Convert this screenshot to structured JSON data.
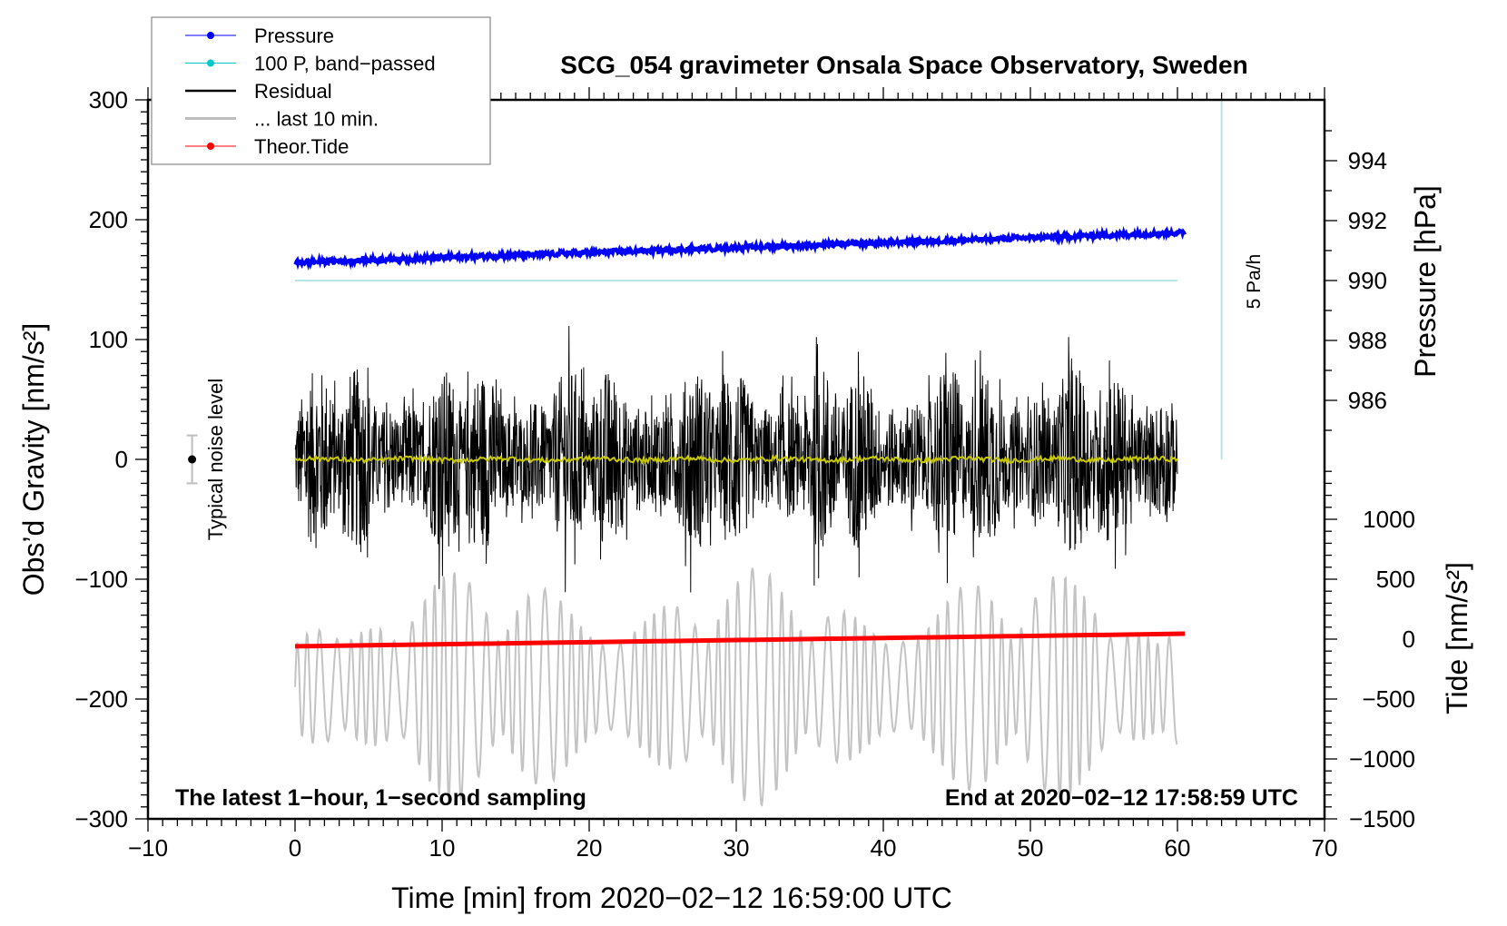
{
  "chart_data": {
    "type": "line",
    "title": "SCG_054 gravimeter Onsala Space Observatory, Sweden",
    "xlabel": "Time [min] from 2020−02−12 16:59:00 UTC",
    "ylabel_left": "Obs’d Gravity [nm/s²]",
    "ylabel_right_pressure": "Pressure [hPa]",
    "ylabel_right_tide": "Tide [nm/s²]",
    "xlim": [
      -10,
      70
    ],
    "ylim": [
      -300,
      300
    ],
    "x_ticks": [
      "−10",
      "0",
      "10",
      "20",
      "30",
      "40",
      "50",
      "60",
      "70"
    ],
    "y_ticks": [
      "300",
      "200",
      "100",
      "0",
      "−100",
      "−200",
      "−300"
    ],
    "pressure_ticks": [
      "994",
      "992",
      "990",
      "988",
      "986"
    ],
    "tide_ticks": [
      "1000",
      "500",
      "0",
      "−500",
      "−1000",
      "−1500"
    ],
    "annotation_left": "The latest 1−hour, 1−second sampling",
    "annotation_right": "End at 2020−02−12 17:58:59 UTC",
    "noise_label": "Typical noise level",
    "noise_level": {
      "x": -7,
      "y": 0,
      "err": 20
    },
    "rate_label": "5 Pa/h",
    "legend": {
      "placement": "top-left",
      "entries": [
        {
          "label": "Pressure",
          "color": "#0000ff",
          "marker": true
        },
        {
          "label": "100 P, band−passed",
          "color": "#00c8c8",
          "marker": true
        },
        {
          "label": "Residual",
          "color": "#000000",
          "marker": false
        },
        {
          "label": "... last 10 min.",
          "color": "#bebebe",
          "marker": false
        },
        {
          "label": "Theor.Tide",
          "color": "#ff0000",
          "marker": true
        }
      ]
    },
    "series": [
      {
        "name": "Pressure",
        "axis": "pressure_hPa",
        "x_range": [
          0,
          60.5
        ],
        "start": 990.6,
        "end": 991.6,
        "noise": 0.08
      },
      {
        "name": "100 P, band-passed",
        "axis": "pressure_hPa",
        "x_range": [
          0,
          60
        ],
        "value": 990.0
      },
      {
        "name": "Residual",
        "axis": "gravity",
        "x_range": [
          0,
          60
        ],
        "mean": 0,
        "amplitude": 100
      },
      {
        "name": "Residual smoothed",
        "axis": "gravity",
        "x_range": [
          0,
          60
        ],
        "mean": 0,
        "amplitude": 2,
        "color": "#c8c800"
      },
      {
        "name": "... last 10 min.",
        "axis": "gravity",
        "x_range": [
          0,
          60
        ],
        "mean": -190,
        "amplitude": 100
      },
      {
        "name": "Theor.Tide",
        "axis": "tide",
        "x_range": [
          0,
          60.5
        ],
        "start": -60,
        "end": 45
      },
      {
        "name": "5 Pa/h reference",
        "axis": "gravity",
        "x": 63,
        "y_range": [
          0,
          300
        ]
      }
    ]
  }
}
